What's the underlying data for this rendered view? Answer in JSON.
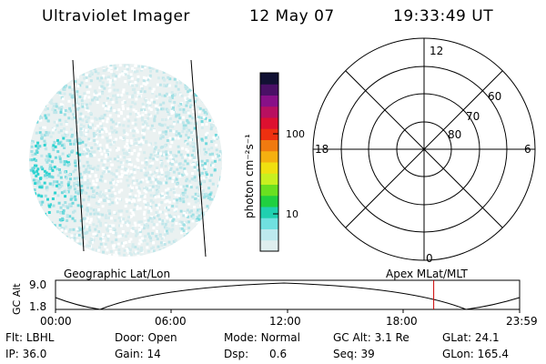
{
  "header": {
    "instrument": "Ultraviolet Imager",
    "date": "12 May 07",
    "time": "19:33:49 UT"
  },
  "colorbar": {
    "unit_label": "photon cm⁻²s⁻¹",
    "ticks": [
      "100",
      "10"
    ],
    "colors": [
      "#111133",
      "#4a1066",
      "#881088",
      "#b81060",
      "#dd1030",
      "#ee3010",
      "#f07a10",
      "#f5b010",
      "#f0e010",
      "#c8f020",
      "#6ae020",
      "#20d040",
      "#20d0b0",
      "#70e0e0",
      "#bde9ee",
      "#dfefef"
    ]
  },
  "polar": {
    "mlt_labels": {
      "top": "12",
      "left": "18",
      "right": "6",
      "bottom": "0"
    },
    "lat_labels": [
      "60",
      "70",
      "80"
    ]
  },
  "timeline": {
    "left_title": "Geographic Lat/Lon",
    "right_title": "Apex MLat/MLT",
    "axis_label": "GC Alt",
    "y_ticks": [
      "9.0",
      "1.8"
    ],
    "x_ticks": [
      "00:00",
      "06:00",
      "12:00",
      "18:00",
      "23:59"
    ],
    "marker_color": "#cc0000",
    "current_time_hours": 19.56
  },
  "status": {
    "row1": [
      {
        "label": "Flt:",
        "value": "LBHL"
      },
      {
        "label": "Door:",
        "value": "Open"
      },
      {
        "label": "Mode:",
        "value": "Normal"
      },
      {
        "label": "GC Alt:",
        "value": "3.1 Re"
      },
      {
        "label": "GLat:",
        "value": "24.1"
      }
    ],
    "row2": [
      {
        "label": "IP:",
        "value": "36.0"
      },
      {
        "label": "Gain:",
        "value": "14"
      },
      {
        "label": "Dsp:",
        "value": "0.6"
      },
      {
        "label": "Seq:",
        "value": "39"
      },
      {
        "label": "GLon:",
        "value": "165.4"
      }
    ]
  }
}
